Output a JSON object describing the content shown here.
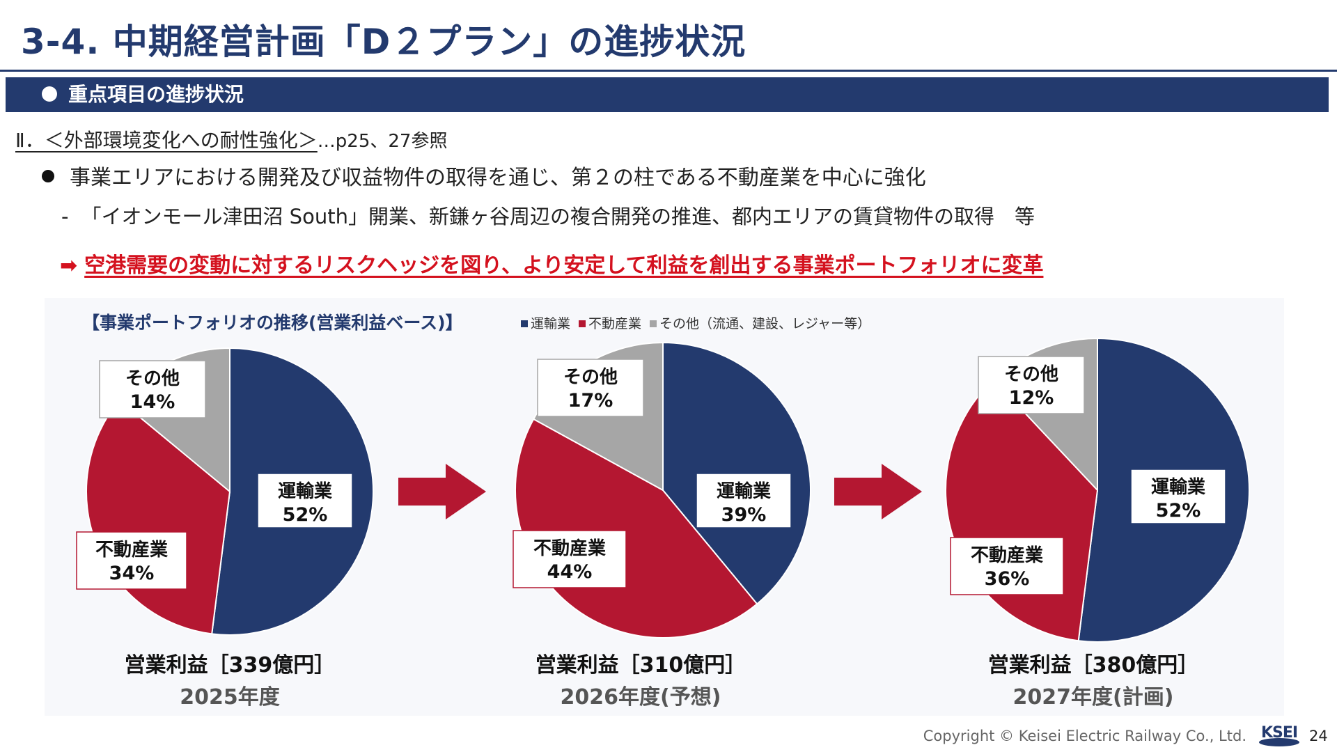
{
  "header": {
    "title": "3-4. 中期経営計画「D２プラン」の進捗状況"
  },
  "section_bar": {
    "label": "重点項目の進捗状況"
  },
  "section": {
    "heading": "Ⅱ．＜外部環境変化への耐性強化＞",
    "ref": "…p25、27参照"
  },
  "bullet": {
    "text": "事業エリアにおける開発及び収益物件の取得を通じ、第２の柱である不動産業を中心に強化"
  },
  "sub": {
    "dash": "-",
    "text": "「イオンモール津田沼 South」開業、新鎌ヶ谷周辺の複合開発の推進、都内エリアの賃貸物件の取得　等"
  },
  "emphasis": {
    "arrow": "➡",
    "text": "空港需要の変動に対するリスクヘッジを図り、より安定して利益を創出する事業ポートフォリオに変革"
  },
  "colors": {
    "transport": "#233a6e",
    "real_estate": "#b41731",
    "other": "#a6a6a6",
    "arrow": "#b41731"
  },
  "chart_data": {
    "type": "pie",
    "title": "【事業ポートフォリオの推移(営業利益ベース)】",
    "legend": [
      {
        "name": "運輸業",
        "color": "#233a6e"
      },
      {
        "name": "不動産業",
        "color": "#b41731"
      },
      {
        "name": "その他（流通、建設、レジャー等）",
        "color": "#a6a6a6"
      }
    ],
    "pies": [
      {
        "profit_label": "営業利益［339億円］",
        "year_label": "2025年度",
        "slices": [
          {
            "name": "運輸業",
            "value": 52,
            "label": "52%"
          },
          {
            "name": "不動産業",
            "value": 34,
            "label": "34%"
          },
          {
            "name": "その他",
            "value": 14,
            "label": "14%"
          }
        ]
      },
      {
        "profit_label": "営業利益［310億円］",
        "year_label": "2026年度(予想)",
        "slices": [
          {
            "name": "運輸業",
            "value": 39,
            "label": "39%"
          },
          {
            "name": "不動産業",
            "value": 44,
            "label": "44%"
          },
          {
            "name": "その他",
            "value": 17,
            "label": "17%"
          }
        ]
      },
      {
        "profit_label": "営業利益［380億円］",
        "year_label": "2027年度(計画)",
        "slices": [
          {
            "name": "運輸業",
            "value": 52,
            "label": "52%"
          },
          {
            "name": "不動産業",
            "value": 36,
            "label": "36%"
          },
          {
            "name": "その他",
            "value": 12,
            "label": "12%"
          }
        ]
      }
    ]
  },
  "footer": {
    "copyright": "Copyright ©  Keisei Electric Railway Co., Ltd.",
    "logo_text": "KSEI",
    "page": "24"
  }
}
